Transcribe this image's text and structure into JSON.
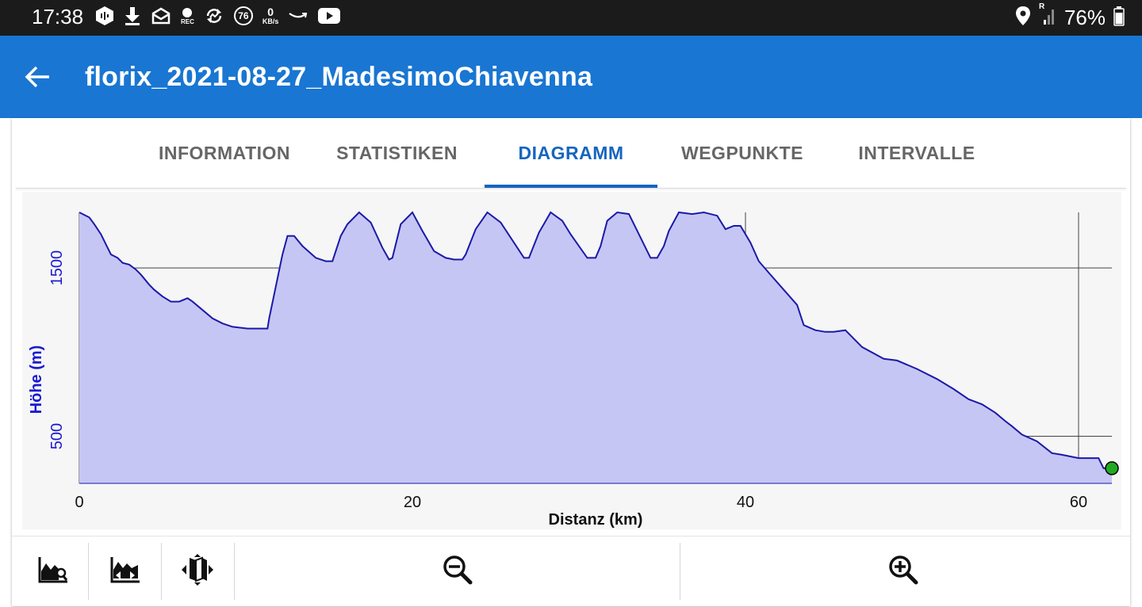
{
  "status_bar": {
    "time": "17:38",
    "network_speed_value": "0",
    "network_speed_unit": "KB/s",
    "notification_count": "76",
    "rec_label": "REC",
    "signal_label": "R",
    "battery": "76%",
    "icons": [
      "hexagon-icon",
      "download-icon",
      "mail-icon",
      "rec-icon",
      "sync-icon",
      "notification-count-icon",
      "network-speed-icon",
      "amazon-icon",
      "youtube-icon",
      "location-icon",
      "signal-icon",
      "battery-icon"
    ]
  },
  "app_bar": {
    "back_icon": "arrow-back-icon",
    "title": "florix_2021-08-27_MadesimoChiavenna"
  },
  "tabs": [
    {
      "label": "INFORMATION",
      "active": false
    },
    {
      "label": "STATISTIKEN",
      "active": false
    },
    {
      "label": "DIAGRAMM",
      "active": true
    },
    {
      "label": "WEGPUNKTE",
      "active": false
    },
    {
      "label": "INTERVALLE",
      "active": false
    }
  ],
  "colors": {
    "app_bar": "#1976d2",
    "accent": "#1565c0",
    "chart_line": "#1a1aa8",
    "chart_fill": "#c6c6f5",
    "axis_label": "#1a1ad0"
  },
  "chart_data": {
    "type": "area",
    "xlabel": "Distanz (km)",
    "ylabel": "Höhe (m)",
    "xlim": [
      0,
      62
    ],
    "ylim": [
      220,
      1830
    ],
    "x_ticks": [
      0,
      20,
      40,
      60
    ],
    "y_ticks": [
      500,
      1500
    ],
    "grid": true,
    "x": [
      0,
      0.6,
      0.9,
      1.3,
      1.6,
      1.9,
      2.3,
      2.6,
      3,
      3.4,
      3.7,
      4.2,
      4.5,
      5,
      5.5,
      6,
      6.5,
      6.8,
      7.4,
      8,
      8.6,
      9.2,
      10.1,
      10.8,
      11.3,
      11.4,
      12.2,
      12.5,
      12.9,
      13.4,
      14.2,
      14.8,
      15.2,
      15.7,
      16.1,
      16.8,
      17.5,
      18.2,
      18.6,
      18.8,
      19.3,
      20,
      20.6,
      21.3,
      22,
      22.5,
      23,
      23.2,
      23.8,
      24.5,
      25.3,
      26.3,
      26.7,
      27,
      27.6,
      28.3,
      29,
      29.5,
      30.5,
      31,
      31.3,
      31.7,
      32.3,
      33,
      33.6,
      34.3,
      34.7,
      35.1,
      35.4,
      36,
      36.8,
      37.5,
      38.3,
      38.8,
      39.3,
      39.7,
      40.3,
      40.8,
      41.5,
      42.3,
      43.1,
      43.5,
      44.2,
      44.8,
      45.3,
      46,
      46.3,
      47,
      48.3,
      49.1,
      50.3,
      51.5,
      52.5,
      53.4,
      54.2,
      55,
      55.6,
      56,
      56.6,
      57.5,
      58.4,
      59,
      60,
      61,
      61.2,
      61.5,
      62
    ],
    "y": [
      1830,
      1800,
      1760,
      1700,
      1640,
      1580,
      1560,
      1530,
      1520,
      1490,
      1460,
      1400,
      1370,
      1330,
      1300,
      1300,
      1320,
      1300,
      1250,
      1200,
      1170,
      1150,
      1140,
      1140,
      1140,
      1200,
      1580,
      1690,
      1690,
      1630,
      1560,
      1540,
      1540,
      1690,
      1760,
      1830,
      1770,
      1620,
      1550,
      1560,
      1760,
      1830,
      1720,
      1600,
      1560,
      1550,
      1550,
      1580,
      1730,
      1830,
      1770,
      1620,
      1560,
      1560,
      1710,
      1830,
      1780,
      1700,
      1560,
      1560,
      1630,
      1780,
      1830,
      1820,
      1700,
      1560,
      1560,
      1630,
      1720,
      1830,
      1820,
      1830,
      1810,
      1730,
      1750,
      1750,
      1650,
      1540,
      1460,
      1370,
      1280,
      1160,
      1130,
      1120,
      1120,
      1130,
      1100,
      1030,
      960,
      950,
      900,
      840,
      780,
      720,
      690,
      640,
      590,
      560,
      510,
      470,
      400,
      390,
      370,
      370,
      370,
      310,
      310
    ]
  },
  "toolbar": {
    "buttons": [
      {
        "name": "chart-settings-button",
        "icon": "chart-settings-icon"
      },
      {
        "name": "chart-xaxis-button",
        "icon": "chart-xaxis-icon"
      },
      {
        "name": "map-button",
        "icon": "map-icon"
      },
      {
        "name": "zoom-out-button",
        "icon": "zoom-out-icon"
      },
      {
        "name": "zoom-in-button",
        "icon": "zoom-in-icon"
      }
    ]
  }
}
